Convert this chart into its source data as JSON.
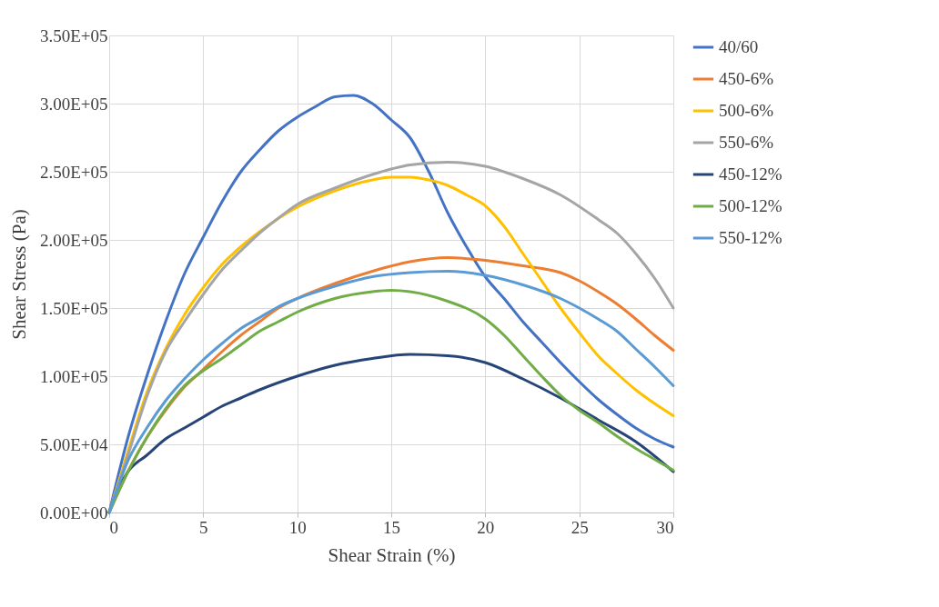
{
  "chart_data": {
    "type": "line",
    "xlabel": "Shear Strain (%)",
    "ylabel": "Shear Stress (Pa)",
    "xlim": [
      0,
      30
    ],
    "xticks": [
      0,
      5,
      10,
      15,
      20,
      25,
      30
    ],
    "ylim": [
      0,
      350000
    ],
    "yticks": [
      {
        "value": 0,
        "label": "0.00E+00"
      },
      {
        "value": 50000,
        "label": "5.00E+04"
      },
      {
        "value": 100000,
        "label": "1.00E+05"
      },
      {
        "value": 150000,
        "label": "1.50E+05"
      },
      {
        "value": 200000,
        "label": "2.00E+05"
      },
      {
        "value": 250000,
        "label": "2.50E+05"
      },
      {
        "value": 300000,
        "label": "3.00E+05"
      },
      {
        "value": 350000,
        "label": "3.50E+05"
      }
    ],
    "grid": true,
    "legend": "right",
    "marker": "none",
    "line_style": "solid",
    "series": [
      {
        "name": "40/60",
        "color": "#4472c4",
        "x": [
          0,
          1,
          2,
          3,
          4,
          5,
          6,
          7,
          8,
          9,
          10,
          11,
          12,
          13,
          14,
          15,
          16,
          17,
          18,
          19,
          20,
          21,
          22,
          23,
          24,
          25,
          26,
          27,
          28,
          29,
          30
        ],
        "values": [
          0,
          55000,
          100000,
          140000,
          175000,
          202000,
          228000,
          250000,
          266000,
          280000,
          290000,
          298000,
          305000,
          306000,
          300000,
          288000,
          275000,
          250000,
          220000,
          195000,
          173000,
          157000,
          140000,
          125000,
          110000,
          96000,
          83000,
          72000,
          62000,
          54000,
          48000
        ]
      },
      {
        "name": "450-6%",
        "color": "#ed7d31",
        "x": [
          0,
          1,
          2,
          3,
          4,
          5,
          6,
          7,
          8,
          9,
          10,
          12,
          14,
          16,
          18,
          20,
          22,
          24,
          25,
          26,
          27,
          28,
          29,
          30
        ],
        "values": [
          0,
          30000,
          55000,
          75000,
          92000,
          105000,
          118000,
          130000,
          140000,
          150000,
          157000,
          168000,
          177000,
          184000,
          187000,
          185000,
          181000,
          176000,
          170000,
          162000,
          153000,
          142000,
          130000,
          119000
        ]
      },
      {
        "name": "500-6%",
        "color": "#ffc000",
        "x": [
          0,
          1,
          2,
          3,
          4,
          5,
          6,
          7,
          8,
          10,
          12,
          14,
          15,
          16,
          17,
          18,
          19,
          20,
          21,
          22,
          23,
          24,
          25,
          26,
          27,
          28,
          29,
          30
        ],
        "values": [
          0,
          45000,
          88000,
          120000,
          145000,
          165000,
          182000,
          195000,
          206000,
          224000,
          236000,
          244000,
          246000,
          246000,
          244000,
          240000,
          233000,
          225000,
          210000,
          190000,
          170000,
          150000,
          132000,
          115000,
          102000,
          90000,
          80000,
          71000
        ]
      },
      {
        "name": "550-6%",
        "color": "#a5a5a5",
        "x": [
          0,
          1,
          2,
          3,
          4,
          5,
          6,
          7,
          8,
          9,
          10,
          12,
          14,
          16,
          18,
          20,
          22,
          24,
          26,
          27,
          28,
          29,
          30
        ],
        "values": [
          0,
          42000,
          85000,
          118000,
          140000,
          160000,
          178000,
          192000,
          205000,
          216000,
          226000,
          238000,
          248000,
          255000,
          257000,
          254000,
          245000,
          233000,
          215000,
          205000,
          190000,
          172000,
          150000
        ]
      },
      {
        "name": "450-12%",
        "color": "#264478",
        "x": [
          0,
          0.5,
          1,
          2,
          3,
          4,
          5,
          6,
          7,
          8,
          10,
          12,
          14,
          16,
          18,
          20,
          22,
          24,
          26,
          28,
          30
        ],
        "values": [
          0,
          18000,
          30000,
          42000,
          54000,
          62000,
          70000,
          78000,
          84000,
          90000,
          100000,
          108000,
          113000,
          116000,
          115000,
          110000,
          98000,
          84000,
          68000,
          52000,
          30000
        ]
      },
      {
        "name": "500-12%",
        "color": "#70ad47",
        "x": [
          0,
          1,
          2,
          3,
          4,
          5,
          6,
          7,
          8,
          9,
          10,
          12,
          14,
          15,
          16,
          18,
          20,
          21,
          22,
          23,
          24,
          25,
          26,
          27,
          28,
          29,
          30
        ],
        "values": [
          0,
          30000,
          55000,
          76000,
          93000,
          104000,
          113000,
          123000,
          133000,
          140000,
          147000,
          157000,
          162000,
          163000,
          162000,
          155000,
          142000,
          130000,
          115000,
          100000,
          86000,
          75000,
          66000,
          56000,
          47000,
          39000,
          31000
        ]
      },
      {
        "name": "550-12%",
        "color": "#5b9bd5",
        "x": [
          0,
          1,
          2,
          3,
          4,
          5,
          6,
          7,
          8,
          9,
          10,
          12,
          14,
          16,
          18,
          20,
          22,
          24,
          25,
          26,
          27,
          28,
          29,
          30
        ],
        "values": [
          0,
          38000,
          62000,
          82000,
          98000,
          112000,
          124000,
          135000,
          143000,
          151000,
          157000,
          166000,
          173000,
          176000,
          177000,
          174000,
          167000,
          157000,
          150000,
          142000,
          133000,
          120000,
          107000,
          93000
        ]
      }
    ]
  }
}
